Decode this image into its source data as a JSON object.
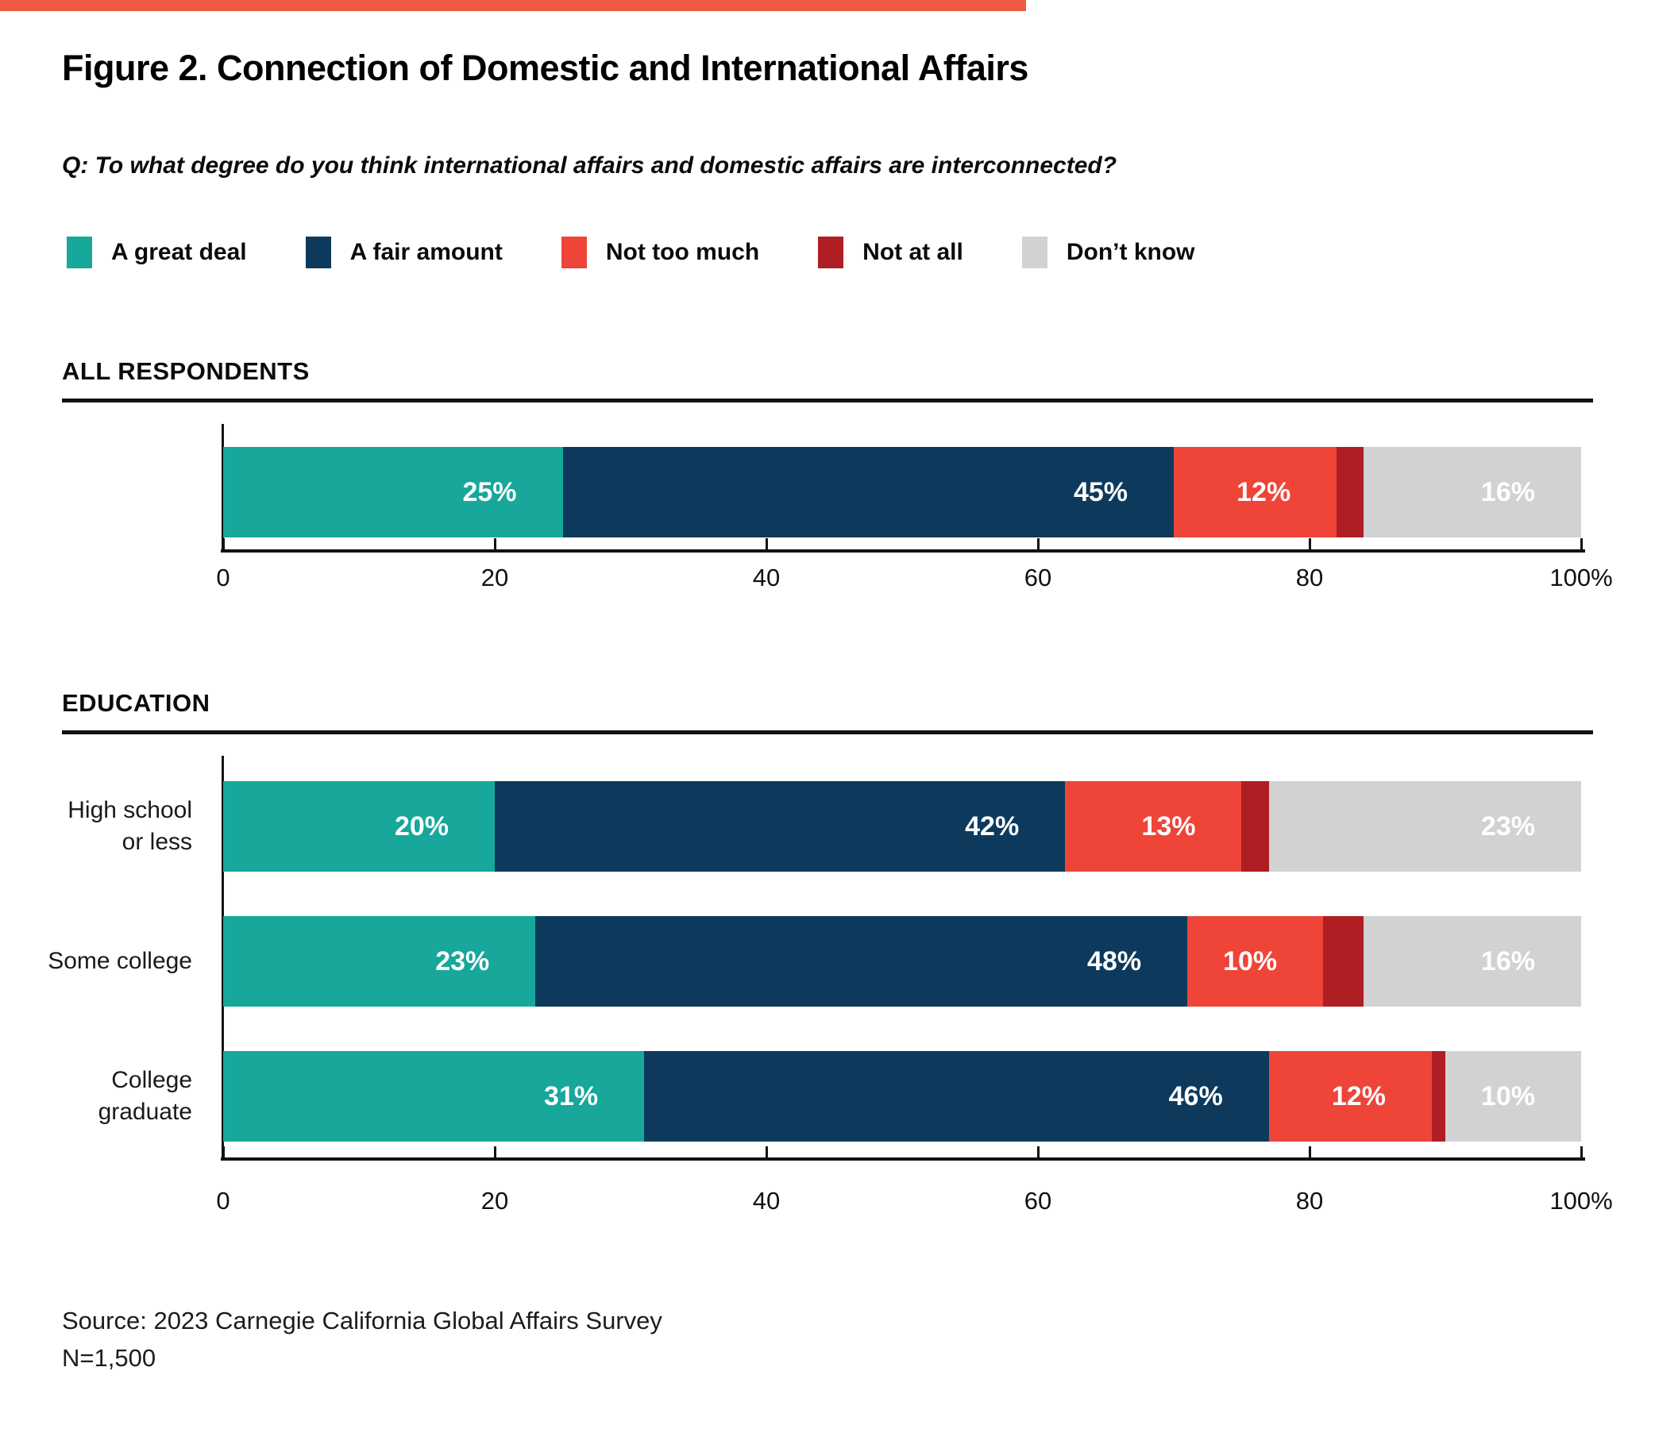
{
  "header": {
    "title": "Figure 2. Connection of Domestic and International Affairs",
    "question": "Q: To what degree do you think international affairs and domestic affairs are interconnected?"
  },
  "colors": {
    "accent_bar": "#EC5B40",
    "a_great_deal": "#17A79B",
    "a_fair_amount": "#0D3A5C",
    "not_too_much": "#EF4438",
    "not_at_all": "#AE1E23",
    "dont_know": "#D2D2D4"
  },
  "chart_data": {
    "type": "bar",
    "stacked": true,
    "orientation": "horizontal",
    "xlim": [
      0,
      100
    ],
    "x_tick_values": [
      0,
      20,
      40,
      60,
      80,
      100
    ],
    "x_tick_labels": [
      "0",
      "20",
      "40",
      "60",
      "80",
      "100%"
    ],
    "series": [
      {
        "name": "A great deal",
        "color": "#17A79B"
      },
      {
        "name": "A fair amount",
        "color": "#0D3A5C"
      },
      {
        "name": "Not too much",
        "color": "#EF4438"
      },
      {
        "name": "Not at all",
        "color": "#AE1E23"
      },
      {
        "name": "Don’t know",
        "color": "#D2D2D4"
      }
    ],
    "sections": [
      {
        "heading": "ALL RESPONDENTS",
        "rows": [
          {
            "label_lines": [],
            "values": [
              25,
              45,
              12,
              2,
              16
            ],
            "value_labels": [
              "25%",
              "45%",
              "12%",
              "",
              "16%"
            ]
          }
        ]
      },
      {
        "heading": "EDUCATION",
        "rows": [
          {
            "label_lines": [
              "High school",
              "or less"
            ],
            "values": [
              20,
              42,
              13,
              2,
              23
            ],
            "value_labels": [
              "20%",
              "42%",
              "13%",
              "",
              "23%"
            ]
          },
          {
            "label_lines": [
              "Some college"
            ],
            "values": [
              23,
              48,
              10,
              3,
              16
            ],
            "value_labels": [
              "23%",
              "48%",
              "10%",
              "",
              "16%"
            ]
          },
          {
            "label_lines": [
              "College",
              "graduate"
            ],
            "values": [
              31,
              46,
              12,
              1,
              10
            ],
            "value_labels": [
              "31%",
              "46%",
              "12%",
              "",
              "10%"
            ]
          }
        ]
      }
    ]
  },
  "footer": {
    "source": "Source: 2023 Carnegie California Global Affairs Survey",
    "n": "N=1,500"
  }
}
